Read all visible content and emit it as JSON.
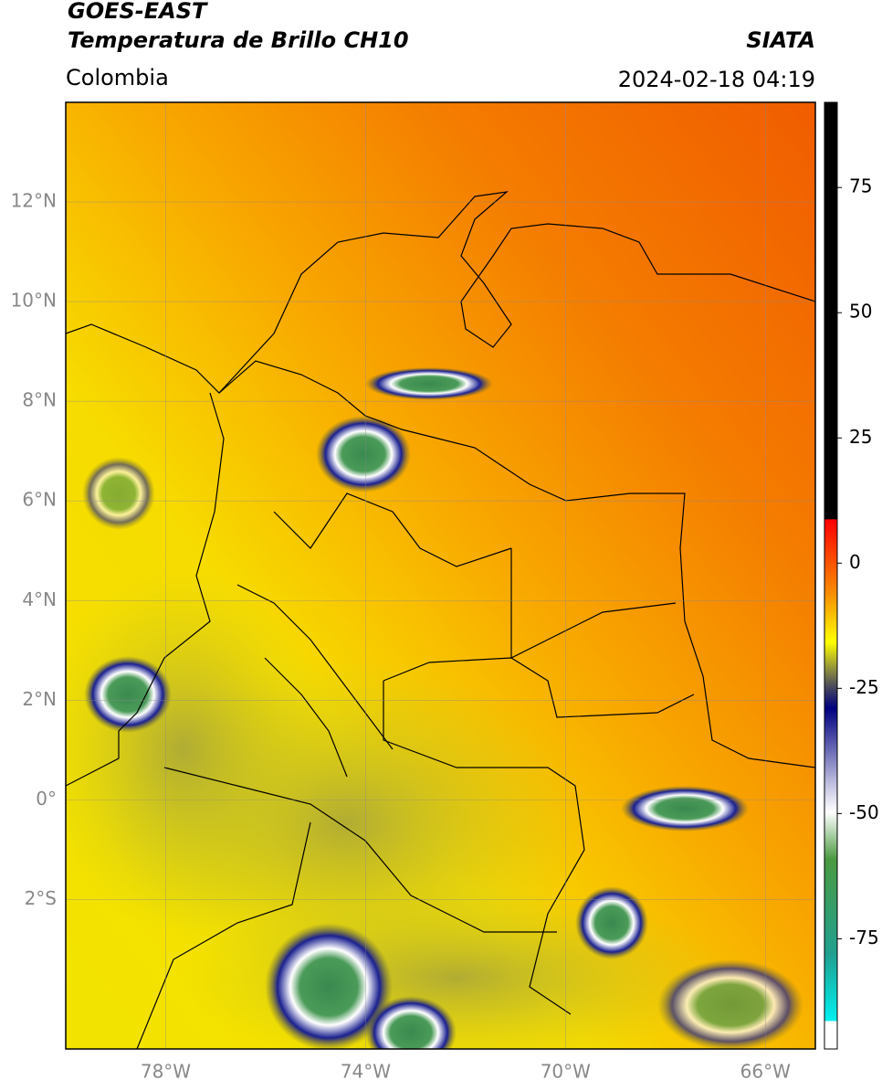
{
  "header": {
    "title": "GOES-EAST",
    "subtitle": "Temperatura de Brillo CH10",
    "source": "SIATA",
    "region": "Colombia",
    "datetime": "2024-02-18 04:19"
  },
  "map": {
    "lon_range": [
      -80,
      -65
    ],
    "lat_range": [
      -5,
      14
    ],
    "grid": true,
    "lat_ticks": [
      {
        "value": 12,
        "label": "12°N"
      },
      {
        "value": 10,
        "label": "10°N"
      },
      {
        "value": 8,
        "label": "8°N"
      },
      {
        "value": 6,
        "label": "6°N"
      },
      {
        "value": 4,
        "label": "4°N"
      },
      {
        "value": 2,
        "label": "2°N"
      },
      {
        "value": 0,
        "label": "0°"
      },
      {
        "value": -2,
        "label": "2°S"
      }
    ],
    "lon_ticks": [
      {
        "value": -78,
        "label": "78°W"
      },
      {
        "value": -74,
        "label": "74°W"
      },
      {
        "value": -70,
        "label": "70°W"
      },
      {
        "value": -66,
        "label": "66°W"
      }
    ]
  },
  "colorbar": {
    "range": [
      -97,
      92
    ],
    "ticks": [
      75,
      50,
      25,
      0,
      -25,
      -50,
      -75
    ]
  }
}
